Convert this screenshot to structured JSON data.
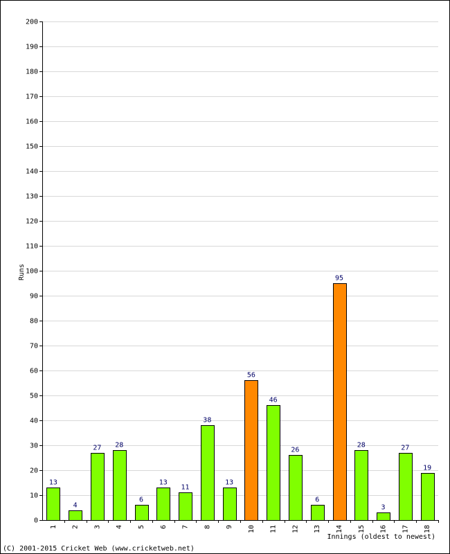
{
  "chart_data": {
    "type": "bar",
    "title": "",
    "ylabel": "Runs",
    "xlabel": "Innings (oldest to newest)",
    "ylim": [
      0,
      200
    ],
    "ytick_step": 10,
    "grid": true,
    "categories": [
      "1",
      "2",
      "3",
      "4",
      "5",
      "6",
      "7",
      "8",
      "9",
      "10",
      "11",
      "12",
      "13",
      "14",
      "15",
      "16",
      "17",
      "18"
    ],
    "values": [
      13,
      4,
      27,
      28,
      6,
      13,
      11,
      38,
      13,
      56,
      46,
      26,
      6,
      95,
      28,
      3,
      27,
      19
    ],
    "highlighted_indices": [
      9,
      13
    ],
    "colors": {
      "bar": "#80ff00",
      "highlight": "#ff8800",
      "grid": "#d8d8d8",
      "value_label": "#000066"
    }
  },
  "footer": {
    "copyright": "(C) 2001-2015 Cricket Web (www.cricketweb.net)"
  }
}
